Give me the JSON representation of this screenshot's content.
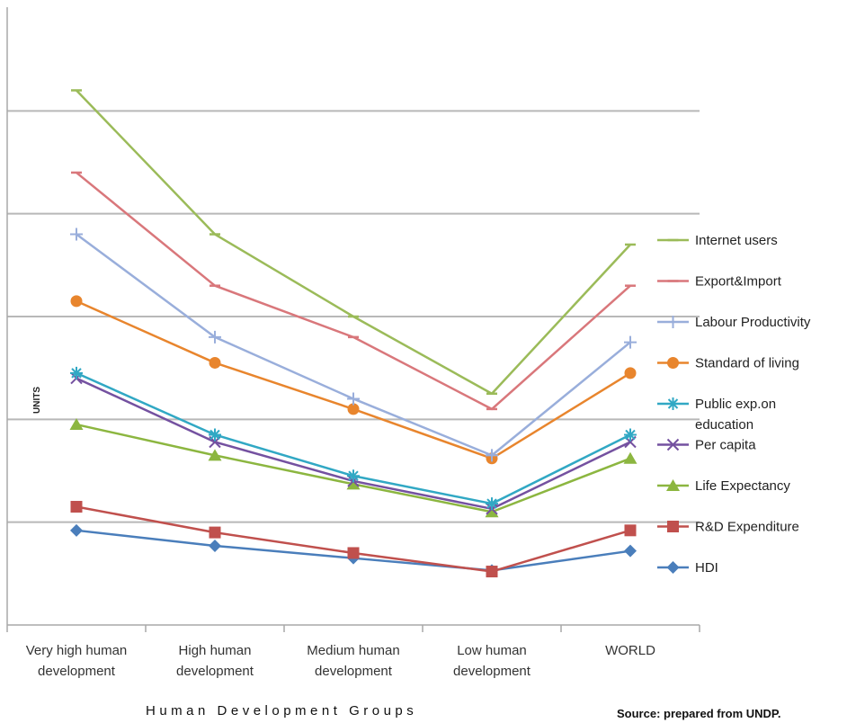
{
  "chart_data": {
    "type": "line",
    "categories": [
      [
        "Very high human",
        "development"
      ],
      [
        "High human",
        "development"
      ],
      [
        "Medium human",
        "development"
      ],
      [
        "Low human",
        "development"
      ],
      [
        "WORLD"
      ]
    ],
    "xlabel": "Human Development Groups",
    "ylabel": "UNITS",
    "source": "Source: prepared from UNDP.",
    "ylim": [
      0,
      6
    ],
    "grid": true,
    "legend_position": "right",
    "series": [
      {
        "name": "Internet users",
        "color": "#9bbb59",
        "marker": "dash",
        "values": [
          5.2,
          3.8,
          3.0,
          2.25,
          3.7
        ]
      },
      {
        "name": "Export&Import",
        "color": "#d9777b",
        "marker": "dash",
        "values": [
          4.4,
          3.3,
          2.8,
          2.1,
          3.3
        ]
      },
      {
        "name": "Labour Productivity",
        "color": "#99aedb",
        "marker": "plus",
        "values": [
          3.8,
          2.8,
          2.2,
          1.65,
          2.75
        ]
      },
      {
        "name": "Standard of living",
        "color": "#e8852d",
        "marker": "circle",
        "values": [
          3.15,
          2.55,
          2.1,
          1.62,
          2.45
        ]
      },
      {
        "name": "Public exp.on\neducation",
        "color": "#31a8c4",
        "marker": "star",
        "values": [
          2.45,
          1.85,
          1.45,
          1.18,
          1.85
        ]
      },
      {
        "name": "Per capita",
        "color": "#7451a0",
        "marker": "x",
        "values": [
          2.4,
          1.78,
          1.4,
          1.13,
          1.78
        ]
      },
      {
        "name": "Life Expectancy",
        "color": "#8cb640",
        "marker": "triangle",
        "values": [
          1.95,
          1.65,
          1.37,
          1.1,
          1.62
        ]
      },
      {
        "name": "R&D Expenditure",
        "color": "#c0504d",
        "marker": "square",
        "values": [
          1.15,
          0.9,
          0.7,
          0.52,
          0.92
        ]
      },
      {
        "name": "HDI",
        "color": "#4a7ebb",
        "marker": "diamond",
        "values": [
          0.92,
          0.77,
          0.65,
          0.53,
          0.72
        ]
      }
    ]
  }
}
